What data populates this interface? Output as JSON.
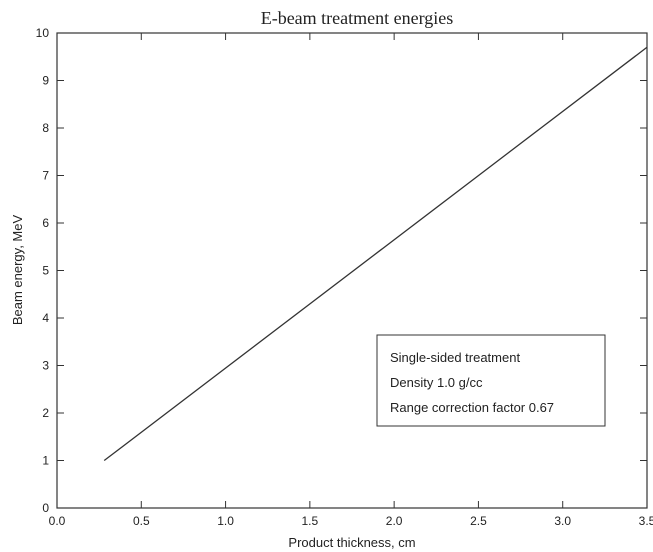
{
  "chart_data": {
    "type": "line",
    "title": "E-beam treatment energies",
    "xlabel": "Product thickness,  cm",
    "ylabel": "Beam energy,  MeV",
    "xlim": [
      0.0,
      3.5
    ],
    "ylim": [
      0,
      10
    ],
    "x_ticks": [
      "0.0",
      "0.5",
      "1.0",
      "1.5",
      "2.0",
      "2.5",
      "3.0",
      "3.5"
    ],
    "y_ticks": [
      "0",
      "1",
      "2",
      "3",
      "4",
      "5",
      "6",
      "7",
      "8",
      "9",
      "10"
    ],
    "grid": false,
    "series": [
      {
        "x": [
          0.28,
          3.5
        ],
        "y": [
          1.0,
          9.7
        ]
      }
    ],
    "annotation": {
      "lines": [
        "Single-sided treatment",
        "Density 1.0 g/cc",
        "Range correction factor 0.67"
      ],
      "placement": "lower-right"
    },
    "colors": {
      "line": "#333333",
      "axes": "#333333"
    }
  }
}
